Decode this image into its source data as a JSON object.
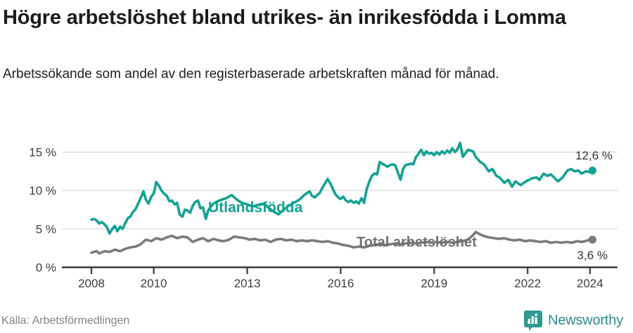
{
  "header": {
    "title": "Högre arbetslöshet bland utrikes- än inrikesfödda i Lomma",
    "subtitle": "Arbetssökande som andel av den registerbaserade arbetskraften månad för månad."
  },
  "footer": {
    "source": "Källa: Arbetsförmedlingen",
    "brand": "Newsworthy",
    "brand_icon": "bar-chart-speech-bubble-icon"
  },
  "colors": {
    "series_foreign": "#13a294",
    "series_total": "#7a7a7a",
    "series_total_label": "#717171",
    "gridline": "#dcdcdc",
    "axis": "#3a3a3a",
    "tick_label": "#3c3c3c",
    "value_label": "#333333",
    "logo_teal": "#2e8d86"
  },
  "chart_data": {
    "type": "line",
    "title": "Högre arbetslöshet bland utrikes- än inrikesfödda i Lomma",
    "subtitle": "Arbetssökande som andel av den registerbaserade arbetskraften månad för månad.",
    "xlabel": "",
    "ylabel": "",
    "grid": "horizontal",
    "legend_position": "inline-labels",
    "xlim": [
      2007.6,
      2024.9
    ],
    "ylim": [
      0,
      17.5
    ],
    "x_ticks": [
      2008,
      2010,
      2013,
      2016,
      2019,
      2022,
      2024
    ],
    "y_ticks": [
      {
        "value": 0,
        "label": "0 %"
      },
      {
        "value": 5,
        "label": "5 %"
      },
      {
        "value": 10,
        "label": "10 %"
      },
      {
        "value": 15,
        "label": "15 %"
      }
    ],
    "series": [
      {
        "name": "Utlandsfödda",
        "color": "#13a294",
        "end_value": 12.6,
        "end_label": "12,6 %",
        "points": [
          [
            2008.0,
            6.2
          ],
          [
            2008.08,
            6.3
          ],
          [
            2008.17,
            6.1
          ],
          [
            2008.25,
            5.7
          ],
          [
            2008.33,
            5.9
          ],
          [
            2008.42,
            5.6
          ],
          [
            2008.5,
            5.2
          ],
          [
            2008.58,
            4.4
          ],
          [
            2008.67,
            5.0
          ],
          [
            2008.75,
            5.4
          ],
          [
            2008.83,
            4.7
          ],
          [
            2008.92,
            5.3
          ],
          [
            2009.0,
            5.0
          ],
          [
            2009.08,
            5.7
          ],
          [
            2009.17,
            6.4
          ],
          [
            2009.25,
            6.6
          ],
          [
            2009.33,
            7.2
          ],
          [
            2009.42,
            7.6
          ],
          [
            2009.5,
            8.3
          ],
          [
            2009.58,
            9.0
          ],
          [
            2009.67,
            9.9
          ],
          [
            2009.75,
            8.8
          ],
          [
            2009.83,
            8.3
          ],
          [
            2009.92,
            9.2
          ],
          [
            2010.0,
            9.6
          ],
          [
            2010.08,
            11.1
          ],
          [
            2010.17,
            10.6
          ],
          [
            2010.25,
            10.0
          ],
          [
            2010.33,
            9.6
          ],
          [
            2010.42,
            9.3
          ],
          [
            2010.5,
            8.6
          ],
          [
            2010.58,
            8.7
          ],
          [
            2010.67,
            8.2
          ],
          [
            2010.75,
            8.4
          ],
          [
            2010.83,
            6.9
          ],
          [
            2010.92,
            6.6
          ],
          [
            2011.0,
            7.5
          ],
          [
            2011.08,
            7.4
          ],
          [
            2011.17,
            7.1
          ],
          [
            2011.25,
            8.0
          ],
          [
            2011.33,
            8.5
          ],
          [
            2011.42,
            8.7
          ],
          [
            2011.5,
            7.7
          ],
          [
            2011.58,
            7.8
          ],
          [
            2011.67,
            6.3
          ],
          [
            2011.75,
            7.4
          ],
          [
            2011.83,
            7.9
          ],
          [
            2011.92,
            8.3
          ],
          [
            2012.0,
            8.5
          ],
          [
            2012.17,
            8.8
          ],
          [
            2012.33,
            9.0
          ],
          [
            2012.5,
            9.4
          ],
          [
            2012.67,
            8.8
          ],
          [
            2012.83,
            8.4
          ],
          [
            2013.0,
            8.2
          ],
          [
            2013.17,
            7.9
          ],
          [
            2013.33,
            8.1
          ],
          [
            2013.5,
            8.3
          ],
          [
            2013.67,
            7.8
          ],
          [
            2013.83,
            7.3
          ],
          [
            2014.0,
            6.9
          ],
          [
            2014.17,
            7.5
          ],
          [
            2014.33,
            8.0
          ],
          [
            2014.5,
            8.4
          ],
          [
            2014.67,
            8.8
          ],
          [
            2014.83,
            9.4
          ],
          [
            2015.0,
            9.9
          ],
          [
            2015.08,
            9.3
          ],
          [
            2015.17,
            9.1
          ],
          [
            2015.25,
            9.4
          ],
          [
            2015.33,
            9.7
          ],
          [
            2015.42,
            10.4
          ],
          [
            2015.58,
            11.5
          ],
          [
            2015.67,
            10.9
          ],
          [
            2015.75,
            10.2
          ],
          [
            2015.83,
            9.5
          ],
          [
            2015.92,
            9.1
          ],
          [
            2016.0,
            8.9
          ],
          [
            2016.08,
            9.2
          ],
          [
            2016.17,
            8.7
          ],
          [
            2016.25,
            8.5
          ],
          [
            2016.33,
            8.7
          ],
          [
            2016.42,
            8.4
          ],
          [
            2016.5,
            8.6
          ],
          [
            2016.58,
            8.3
          ],
          [
            2016.67,
            9.0
          ],
          [
            2016.75,
            8.4
          ],
          [
            2016.83,
            10.1
          ],
          [
            2016.92,
            11.2
          ],
          [
            2017.0,
            11.9
          ],
          [
            2017.08,
            12.2
          ],
          [
            2017.17,
            12.1
          ],
          [
            2017.25,
            13.7
          ],
          [
            2017.33,
            13.5
          ],
          [
            2017.42,
            13.3
          ],
          [
            2017.5,
            13.1
          ],
          [
            2017.58,
            13.3
          ],
          [
            2017.67,
            13.4
          ],
          [
            2017.75,
            13.3
          ],
          [
            2017.92,
            11.4
          ],
          [
            2018.0,
            12.8
          ],
          [
            2018.08,
            13.3
          ],
          [
            2018.17,
            13.4
          ],
          [
            2018.25,
            13.5
          ],
          [
            2018.33,
            13.4
          ],
          [
            2018.42,
            14.4
          ],
          [
            2018.5,
            14.8
          ],
          [
            2018.58,
            15.3
          ],
          [
            2018.67,
            14.6
          ],
          [
            2018.75,
            15.1
          ],
          [
            2018.83,
            14.8
          ],
          [
            2018.92,
            14.9
          ],
          [
            2019.0,
            14.6
          ],
          [
            2019.08,
            15.0
          ],
          [
            2019.17,
            14.7
          ],
          [
            2019.25,
            15.1
          ],
          [
            2019.33,
            14.8
          ],
          [
            2019.42,
            15.2
          ],
          [
            2019.5,
            14.9
          ],
          [
            2019.58,
            15.5
          ],
          [
            2019.67,
            15.0
          ],
          [
            2019.75,
            15.4
          ],
          [
            2019.83,
            16.2
          ],
          [
            2019.92,
            14.4
          ],
          [
            2020.0,
            14.8
          ],
          [
            2020.08,
            15.3
          ],
          [
            2020.25,
            15.1
          ],
          [
            2020.33,
            14.4
          ],
          [
            2020.48,
            13.7
          ],
          [
            2020.6,
            13.4
          ],
          [
            2020.75,
            12.5
          ],
          [
            2020.87,
            12.8
          ],
          [
            2021.0,
            11.9
          ],
          [
            2021.1,
            11.7
          ],
          [
            2021.25,
            11.0
          ],
          [
            2021.38,
            11.4
          ],
          [
            2021.5,
            10.5
          ],
          [
            2021.61,
            11.2
          ],
          [
            2021.77,
            10.7
          ],
          [
            2021.95,
            11.2
          ],
          [
            2022.15,
            11.6
          ],
          [
            2022.29,
            11.7
          ],
          [
            2022.38,
            11.4
          ],
          [
            2022.51,
            12.2
          ],
          [
            2022.63,
            11.9
          ],
          [
            2022.74,
            12.1
          ],
          [
            2022.85,
            11.7
          ],
          [
            2022.97,
            11.2
          ],
          [
            2023.12,
            11.7
          ],
          [
            2023.28,
            12.6
          ],
          [
            2023.39,
            12.8
          ],
          [
            2023.51,
            12.5
          ],
          [
            2023.62,
            12.6
          ],
          [
            2023.73,
            12.2
          ],
          [
            2023.87,
            12.5
          ],
          [
            2023.98,
            12.4
          ],
          [
            2024.08,
            12.6
          ]
        ]
      },
      {
        "name": "Total arbetslöshet",
        "color": "#7a7a7a",
        "end_value": 3.6,
        "end_label": "3,6 %",
        "points": [
          [
            2008.0,
            1.9
          ],
          [
            2008.17,
            2.1
          ],
          [
            2008.25,
            1.8
          ],
          [
            2008.42,
            2.1
          ],
          [
            2008.58,
            2.0
          ],
          [
            2008.75,
            2.3
          ],
          [
            2008.92,
            2.1
          ],
          [
            2009.08,
            2.4
          ],
          [
            2009.25,
            2.6
          ],
          [
            2009.42,
            2.7
          ],
          [
            2009.58,
            3.0
          ],
          [
            2009.75,
            3.6
          ],
          [
            2009.92,
            3.4
          ],
          [
            2010.08,
            3.8
          ],
          [
            2010.25,
            3.6
          ],
          [
            2010.42,
            3.9
          ],
          [
            2010.58,
            4.1
          ],
          [
            2010.75,
            3.8
          ],
          [
            2010.92,
            4.0
          ],
          [
            2011.08,
            3.9
          ],
          [
            2011.25,
            3.3
          ],
          [
            2011.42,
            3.6
          ],
          [
            2011.58,
            3.8
          ],
          [
            2011.75,
            3.4
          ],
          [
            2011.92,
            3.7
          ],
          [
            2012.08,
            3.5
          ],
          [
            2012.25,
            3.4
          ],
          [
            2012.42,
            3.6
          ],
          [
            2012.58,
            4.0
          ],
          [
            2012.75,
            3.9
          ],
          [
            2012.92,
            3.8
          ],
          [
            2013.08,
            3.6
          ],
          [
            2013.25,
            3.7
          ],
          [
            2013.42,
            3.5
          ],
          [
            2013.58,
            3.6
          ],
          [
            2013.75,
            3.3
          ],
          [
            2013.92,
            3.6
          ],
          [
            2014.08,
            3.7
          ],
          [
            2014.25,
            3.5
          ],
          [
            2014.42,
            3.6
          ],
          [
            2014.58,
            3.4
          ],
          [
            2014.75,
            3.5
          ],
          [
            2014.92,
            3.4
          ],
          [
            2015.08,
            3.5
          ],
          [
            2015.25,
            3.4
          ],
          [
            2015.42,
            3.3
          ],
          [
            2015.58,
            3.4
          ],
          [
            2015.75,
            3.2
          ],
          [
            2015.92,
            3.1
          ],
          [
            2016.08,
            2.9
          ],
          [
            2016.25,
            2.8
          ],
          [
            2016.42,
            2.6
          ],
          [
            2016.58,
            2.7
          ],
          [
            2016.75,
            2.6
          ],
          [
            2016.92,
            2.8
          ],
          [
            2017.08,
            2.9
          ],
          [
            2017.25,
            3.0
          ],
          [
            2017.42,
            2.9
          ],
          [
            2017.58,
            3.0
          ],
          [
            2017.75,
            3.1
          ],
          [
            2017.92,
            3.0
          ],
          [
            2018.08,
            3.1
          ],
          [
            2018.25,
            3.2
          ],
          [
            2018.42,
            3.1
          ],
          [
            2018.58,
            3.2
          ],
          [
            2018.75,
            3.3
          ],
          [
            2018.92,
            3.2
          ],
          [
            2019.08,
            3.3
          ],
          [
            2019.25,
            3.2
          ],
          [
            2019.42,
            3.3
          ],
          [
            2019.58,
            3.2
          ],
          [
            2019.75,
            3.3
          ],
          [
            2019.92,
            3.4
          ],
          [
            2020.08,
            3.6
          ],
          [
            2020.25,
            4.2
          ],
          [
            2020.33,
            4.6
          ],
          [
            2020.42,
            4.4
          ],
          [
            2020.58,
            4.1
          ],
          [
            2020.75,
            3.9
          ],
          [
            2020.92,
            3.8
          ],
          [
            2021.08,
            3.7
          ],
          [
            2021.25,
            3.8
          ],
          [
            2021.42,
            3.6
          ],
          [
            2021.58,
            3.5
          ],
          [
            2021.75,
            3.6
          ],
          [
            2021.92,
            3.4
          ],
          [
            2022.08,
            3.5
          ],
          [
            2022.25,
            3.4
          ],
          [
            2022.42,
            3.3
          ],
          [
            2022.58,
            3.4
          ],
          [
            2022.75,
            3.2
          ],
          [
            2022.92,
            3.3
          ],
          [
            2023.08,
            3.2
          ],
          [
            2023.25,
            3.3
          ],
          [
            2023.42,
            3.2
          ],
          [
            2023.58,
            3.4
          ],
          [
            2023.75,
            3.3
          ],
          [
            2023.92,
            3.5
          ],
          [
            2024.08,
            3.6
          ]
        ]
      }
    ]
  }
}
